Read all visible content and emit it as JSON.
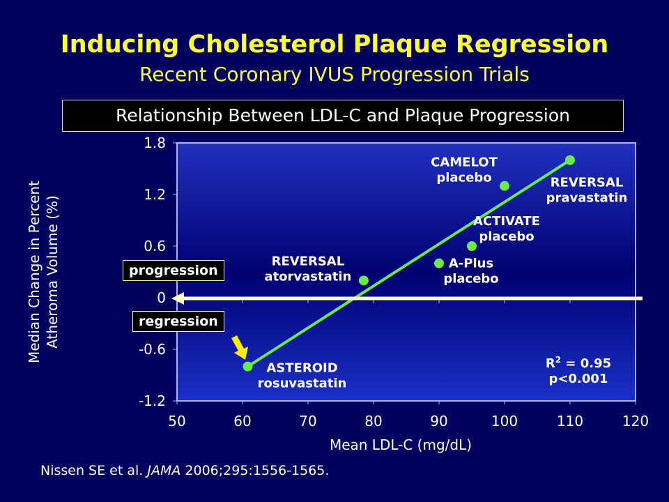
{
  "title": "Inducing Cholesterol Plaque Regression",
  "subtitle": "Recent Coronary IVUS Progression Trials",
  "box_title": "Relationship Between LDL-C and Plaque Progression",
  "citation": {
    "authors": "Nissen SE et al.",
    "journal": "JAMA",
    "details": "2006;295:1556-1565."
  },
  "annotations": {
    "progression": "progression",
    "regression": "regression",
    "r2_label": "R",
    "r2_sup": "2",
    "r2_value": " = 0.95",
    "p_value": "p<0.001"
  },
  "colors": {
    "background": "#00005e",
    "title": "#ffff33",
    "points": "#66ee44",
    "fit_line": "#66ee44",
    "zero_arrow": "#ffffcc",
    "regression_arrow": "#ffee00"
  },
  "chart_data": {
    "type": "scatter",
    "xlabel": "Mean LDL-C (mg/dL)",
    "ylabel": [
      "Median Change in Percent",
      "Atheroma Volume (%)"
    ],
    "xlim": [
      50,
      120
    ],
    "ylim": [
      -1.2,
      1.8
    ],
    "x_ticks": [
      "50",
      "60",
      "70",
      "80",
      "90",
      "100",
      "110",
      "120"
    ],
    "y_ticks": [
      "1.8",
      "1.2",
      "0.6",
      "0",
      "-0.6",
      "-1.2"
    ],
    "grid": false,
    "points": [
      {
        "label": [
          "ASTEROID",
          "rosuvastatin"
        ],
        "x": 60.8,
        "y": -0.8
      },
      {
        "label": [
          "REVERSAL",
          "atorvastatin"
        ],
        "x": 78.5,
        "y": 0.2
      },
      {
        "label": [
          "A-Plus",
          "placebo"
        ],
        "x": 90,
        "y": 0.4
      },
      {
        "label": [
          "ACTIVATE",
          "placebo"
        ],
        "x": 95,
        "y": 0.6
      },
      {
        "label": [
          "CAMELOT",
          "placebo"
        ],
        "x": 100,
        "y": 1.3
      },
      {
        "label": [
          "REVERSAL",
          "pravastatin"
        ],
        "x": 110,
        "y": 1.6
      }
    ],
    "fit_line": {
      "from": [
        60.8,
        -0.8
      ],
      "to": [
        110,
        1.6
      ]
    }
  }
}
